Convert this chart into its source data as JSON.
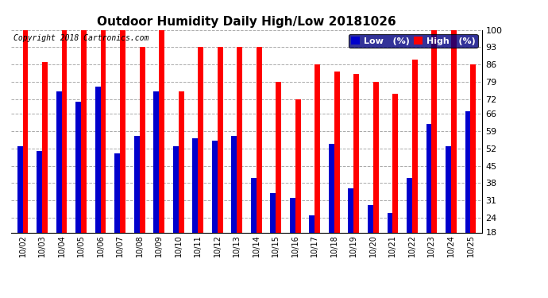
{
  "title": "Outdoor Humidity Daily High/Low 20181026",
  "copyright": "Copyright 2018 Cartronics.com",
  "dates": [
    "10/02",
    "10/03",
    "10/04",
    "10/05",
    "10/06",
    "10/07",
    "10/08",
    "10/09",
    "10/10",
    "10/11",
    "10/12",
    "10/13",
    "10/14",
    "10/15",
    "10/16",
    "10/17",
    "10/18",
    "10/19",
    "10/20",
    "10/21",
    "10/22",
    "10/23",
    "10/24",
    "10/25"
  ],
  "high": [
    100,
    87,
    100,
    100,
    100,
    100,
    93,
    100,
    75,
    93,
    93,
    93,
    93,
    79,
    72,
    86,
    83,
    82,
    79,
    74,
    88,
    100,
    100,
    86
  ],
  "low": [
    53,
    51,
    75,
    71,
    77,
    50,
    57,
    75,
    53,
    56,
    55,
    57,
    40,
    34,
    32,
    25,
    54,
    36,
    29,
    26,
    40,
    62,
    53,
    67
  ],
  "ylim_min": 18,
  "ylim_max": 100,
  "yticks": [
    18,
    24,
    31,
    38,
    45,
    52,
    59,
    66,
    72,
    79,
    86,
    93,
    100
  ],
  "bar_width": 0.28,
  "high_color": "#FF0000",
  "low_color": "#0000CC",
  "bg_color": "#FFFFFF",
  "grid_color": "#AAAAAA",
  "title_fontsize": 11,
  "copyright_fontsize": 7,
  "legend_fontsize": 8,
  "legend_bg": "#000080"
}
